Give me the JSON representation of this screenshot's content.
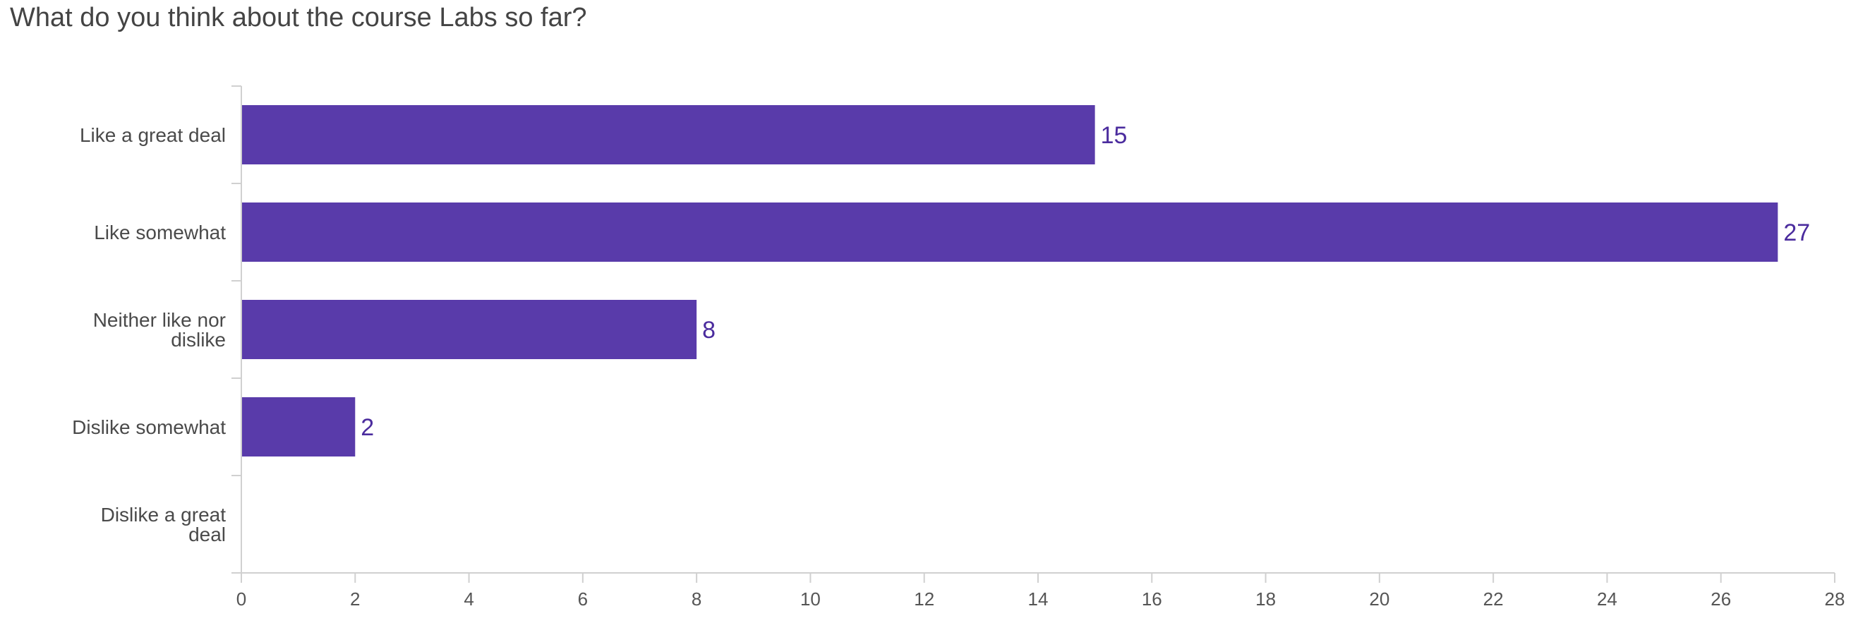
{
  "chart_data": {
    "type": "bar",
    "orientation": "horizontal",
    "title": "What do you think about the course Labs so far?",
    "categories": [
      "Like a great deal",
      "Like somewhat",
      "Neither like nor dislike",
      "Dislike somewhat",
      "Dislike a great deal"
    ],
    "values": [
      15,
      27,
      8,
      2,
      0
    ],
    "data_labels": [
      "15",
      "27",
      "8",
      "2",
      ""
    ],
    "xlim": [
      0,
      28
    ],
    "xticks": [
      0,
      2,
      4,
      6,
      8,
      10,
      12,
      14,
      16,
      18,
      20,
      22,
      24,
      26,
      28
    ],
    "grid": false,
    "legend": "none",
    "colors": {
      "bar": "#593BAA",
      "value_label": "#4B2C9E",
      "axis": "#D0D0D0",
      "title": "#444444"
    }
  }
}
